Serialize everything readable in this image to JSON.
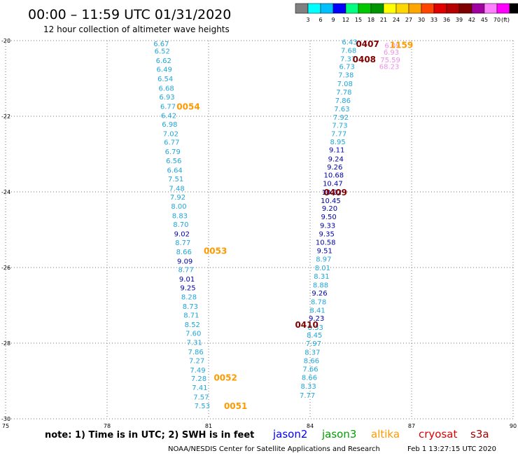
{
  "chart_data": {
    "type": "scatter",
    "title": "00:00 – 11:59 UTC 01/31/2020",
    "subtitle": "12 hour collection of altimeter wave heights",
    "xlim": [
      75,
      90
    ],
    "ylim": [
      -30,
      -20
    ],
    "x_ticks": [
      "75",
      "78",
      "81",
      "84",
      "87",
      "90"
    ],
    "y_ticks": [
      "-20",
      "-22",
      "-24",
      "-26",
      "-28",
      "-30"
    ],
    "grid": true,
    "color_scale": {
      "ticks": [
        "3",
        "6",
        "9",
        "12",
        "15",
        "18",
        "21",
        "24",
        "27",
        "30",
        "33",
        "36",
        "39",
        "42",
        "45",
        "70"
      ],
      "unit": "(ft)",
      "colors": [
        "#808080",
        "#00ffff",
        "#00bfff",
        "#0000ff",
        "#00ff7f",
        "#00c800",
        "#009600",
        "#ffff00",
        "#ffd700",
        "#ffa500",
        "#ff4500",
        "#e00000",
        "#b40000",
        "#800000",
        "#a000a0",
        "#ff80ff",
        "#ff00ff",
        "#000000"
      ]
    },
    "series": [
      {
        "name": "jason3",
        "points": [
          {
            "x": 79.6,
            "y": -20.07,
            "v": "6.67",
            "c": "#20a6d8"
          },
          {
            "x": 79.63,
            "y": -20.27,
            "v": "6.52",
            "c": "#20a6d8"
          },
          {
            "x": 79.67,
            "y": -20.52,
            "v": "6.62",
            "c": "#20a6d8"
          },
          {
            "x": 79.69,
            "y": -20.75,
            "v": "6.49",
            "c": "#20a6d8"
          },
          {
            "x": 79.72,
            "y": -21.0,
            "v": "6.54",
            "c": "#20a6d8"
          },
          {
            "x": 79.75,
            "y": -21.25,
            "v": "6.68",
            "c": "#20a6d8"
          },
          {
            "x": 79.77,
            "y": -21.48,
            "v": "6.93",
            "c": "#20a6d8"
          },
          {
            "x": 79.8,
            "y": -21.73,
            "v": "6.77",
            "c": "#20a6d8"
          },
          {
            "x": 79.82,
            "y": -21.97,
            "v": "6.42",
            "c": "#20a6d8"
          },
          {
            "x": 79.85,
            "y": -22.2,
            "v": "6.98",
            "c": "#20a6d8"
          },
          {
            "x": 79.88,
            "y": -22.45,
            "v": "7.02",
            "c": "#20a6d8"
          },
          {
            "x": 79.91,
            "y": -22.68,
            "v": "6.77",
            "c": "#20a6d8"
          },
          {
            "x": 79.94,
            "y": -22.93,
            "v": "6.79",
            "c": "#20a6d8"
          },
          {
            "x": 79.97,
            "y": -23.17,
            "v": "6.56",
            "c": "#20a6d8"
          },
          {
            "x": 80.0,
            "y": -23.42,
            "v": "6.64",
            "c": "#20a6d8"
          },
          {
            "x": 80.03,
            "y": -23.65,
            "v": "7.51",
            "c": "#20a6d8"
          },
          {
            "x": 80.06,
            "y": -23.9,
            "v": "7.48",
            "c": "#20a6d8"
          },
          {
            "x": 80.09,
            "y": -24.13,
            "v": "7.92",
            "c": "#20a6d8"
          },
          {
            "x": 80.12,
            "y": -24.37,
            "v": "8.00",
            "c": "#20a6d8"
          },
          {
            "x": 80.15,
            "y": -24.62,
            "v": "8.83",
            "c": "#20a6d8"
          },
          {
            "x": 80.18,
            "y": -24.85,
            "v": "8.70",
            "c": "#20a6d8"
          },
          {
            "x": 80.21,
            "y": -25.1,
            "v": "9.02",
            "c": "#0000a8"
          },
          {
            "x": 80.24,
            "y": -25.33,
            "v": "8.77",
            "c": "#20a6d8"
          },
          {
            "x": 80.27,
            "y": -25.57,
            "v": "8.66",
            "c": "#20a6d8"
          },
          {
            "x": 80.3,
            "y": -25.82,
            "v": "9.09",
            "c": "#0000a8"
          },
          {
            "x": 80.33,
            "y": -26.05,
            "v": "8.77",
            "c": "#20a6d8"
          },
          {
            "x": 80.36,
            "y": -26.3,
            "v": "9.01",
            "c": "#0000a8"
          },
          {
            "x": 80.39,
            "y": -26.53,
            "v": "9.25",
            "c": "#0000a8"
          },
          {
            "x": 80.42,
            "y": -26.77,
            "v": "8.28",
            "c": "#20a6d8"
          },
          {
            "x": 80.46,
            "y": -27.02,
            "v": "8.73",
            "c": "#20a6d8"
          },
          {
            "x": 80.49,
            "y": -27.25,
            "v": "8.71",
            "c": "#20a6d8"
          },
          {
            "x": 80.52,
            "y": -27.5,
            "v": "8.52",
            "c": "#20a6d8"
          },
          {
            "x": 80.55,
            "y": -27.73,
            "v": "7.60",
            "c": "#20a6d8"
          },
          {
            "x": 80.58,
            "y": -27.97,
            "v": "7.31",
            "c": "#20a6d8"
          },
          {
            "x": 80.62,
            "y": -28.22,
            "v": "7.86",
            "c": "#20a6d8"
          },
          {
            "x": 80.65,
            "y": -28.45,
            "v": "7.27",
            "c": "#20a6d8"
          },
          {
            "x": 80.68,
            "y": -28.7,
            "v": "7.49",
            "c": "#20a6d8"
          },
          {
            "x": 80.71,
            "y": -28.93,
            "v": "7.28",
            "c": "#20a6d8"
          },
          {
            "x": 80.74,
            "y": -29.17,
            "v": "7.41",
            "c": "#20a6d8"
          },
          {
            "x": 80.78,
            "y": -29.42,
            "v": "7.57",
            "c": "#20a6d8"
          },
          {
            "x": 80.81,
            "y": -29.65,
            "v": "7.53",
            "c": "#20a6d8"
          },
          {
            "x": 85.17,
            "y": -20.03,
            "v": "6.43",
            "c": "#20a6d8"
          },
          {
            "x": 85.14,
            "y": -20.25,
            "v": "7.68",
            "c": "#20a6d8"
          },
          {
            "x": 85.12,
            "y": -20.47,
            "v": "7.37",
            "c": "#20a6d8"
          },
          {
            "x": 85.09,
            "y": -20.68,
            "v": "6.73",
            "c": "#20a6d8"
          },
          {
            "x": 85.06,
            "y": -20.9,
            "v": "7.38",
            "c": "#20a6d8"
          },
          {
            "x": 85.03,
            "y": -21.13,
            "v": "7.08",
            "c": "#20a6d8"
          },
          {
            "x": 85.0,
            "y": -21.35,
            "v": "7.78",
            "c": "#20a6d8"
          },
          {
            "x": 84.97,
            "y": -21.57,
            "v": "7.86",
            "c": "#20a6d8"
          },
          {
            "x": 84.94,
            "y": -21.8,
            "v": "7.63",
            "c": "#20a6d8"
          },
          {
            "x": 84.91,
            "y": -22.02,
            "v": "7.92",
            "c": "#20a6d8"
          },
          {
            "x": 84.88,
            "y": -22.23,
            "v": "7.73",
            "c": "#20a6d8"
          },
          {
            "x": 84.85,
            "y": -22.45,
            "v": "7.77",
            "c": "#20a6d8"
          },
          {
            "x": 84.82,
            "y": -22.67,
            "v": "8.95",
            "c": "#20a6d8"
          },
          {
            "x": 84.79,
            "y": -22.88,
            "v": "9.11",
            "c": "#0000a8"
          },
          {
            "x": 84.76,
            "y": -23.12,
            "v": "9.24",
            "c": "#0000a8"
          },
          {
            "x": 84.73,
            "y": -23.33,
            "v": "9.26",
            "c": "#0000a8"
          },
          {
            "x": 84.7,
            "y": -23.55,
            "v": "10.68",
            "c": "#0000a8"
          },
          {
            "x": 84.67,
            "y": -23.77,
            "v": "10.47",
            "c": "#0000a8"
          },
          {
            "x": 84.64,
            "y": -24.0,
            "v": "10.32",
            "c": "#0000a8"
          },
          {
            "x": 84.61,
            "y": -24.22,
            "v": "10.45",
            "c": "#0000a8"
          },
          {
            "x": 84.58,
            "y": -24.43,
            "v": "9.20",
            "c": "#0000a8"
          },
          {
            "x": 84.55,
            "y": -24.65,
            "v": "9.50",
            "c": "#0000a8"
          },
          {
            "x": 84.52,
            "y": -24.88,
            "v": "9.33",
            "c": "#0000a8"
          },
          {
            "x": 84.49,
            "y": -25.1,
            "v": "9.35",
            "c": "#0000a8"
          },
          {
            "x": 84.46,
            "y": -25.32,
            "v": "10.58",
            "c": "#0000a8"
          },
          {
            "x": 84.43,
            "y": -25.55,
            "v": "9.51",
            "c": "#0000a8"
          },
          {
            "x": 84.4,
            "y": -25.77,
            "v": "8.97",
            "c": "#20a6d8"
          },
          {
            "x": 84.37,
            "y": -26.0,
            "v": "8.01",
            "c": "#20a6d8"
          },
          {
            "x": 84.34,
            "y": -26.22,
            "v": "8.31",
            "c": "#20a6d8"
          },
          {
            "x": 84.31,
            "y": -26.45,
            "v": "8.88",
            "c": "#20a6d8"
          },
          {
            "x": 84.28,
            "y": -26.67,
            "v": "9.26",
            "c": "#0000a8"
          },
          {
            "x": 84.25,
            "y": -26.9,
            "v": "8.78",
            "c": "#20a6d8"
          },
          {
            "x": 84.22,
            "y": -27.12,
            "v": "8.41",
            "c": "#20a6d8"
          },
          {
            "x": 84.19,
            "y": -27.33,
            "v": "9.23",
            "c": "#0000a8"
          },
          {
            "x": 84.16,
            "y": -27.57,
            "v": "8.33",
            "c": "#20a6d8"
          },
          {
            "x": 84.13,
            "y": -27.78,
            "v": "8.45",
            "c": "#20a6d8"
          },
          {
            "x": 84.1,
            "y": -28.0,
            "v": "7.97",
            "c": "#20a6d8"
          },
          {
            "x": 84.07,
            "y": -28.23,
            "v": "8.37",
            "c": "#20a6d8"
          },
          {
            "x": 84.04,
            "y": -28.45,
            "v": "8.66",
            "c": "#20a6d8"
          },
          {
            "x": 84.01,
            "y": -28.68,
            "v": "7.66",
            "c": "#20a6d8"
          },
          {
            "x": 83.98,
            "y": -28.9,
            "v": "8.66",
            "c": "#20a6d8"
          },
          {
            "x": 83.95,
            "y": -29.13,
            "v": "8.33",
            "c": "#20a6d8"
          },
          {
            "x": 83.92,
            "y": -29.37,
            "v": "7.77",
            "c": "#20a6d8"
          }
        ]
      },
      {
        "name": "s3a",
        "points": [
          {
            "x": 86.43,
            "y": -20.12,
            "v": "6.09",
            "c": "#ee8ee8"
          },
          {
            "x": 86.4,
            "y": -20.3,
            "v": "6.93",
            "c": "#ee8ee8"
          },
          {
            "x": 86.37,
            "y": -20.5,
            "v": "75.59",
            "c": "#ee8ee8"
          },
          {
            "x": 86.34,
            "y": -20.68,
            "v": "68.23",
            "c": "#ee8ee8"
          }
        ]
      }
    ],
    "time_labels": [
      {
        "x": 80.4,
        "y": -21.73,
        "text": "0054",
        "color": "#ff9900"
      },
      {
        "x": 81.2,
        "y": -25.55,
        "text": "0053",
        "color": "#ff9900"
      },
      {
        "x": 81.5,
        "y": -28.9,
        "text": "0052",
        "color": "#ff9900"
      },
      {
        "x": 81.8,
        "y": -29.65,
        "text": "0051",
        "color": "#ff9900"
      },
      {
        "x": 86.7,
        "y": -20.1,
        "text": "1159",
        "color": "#ff9900"
      },
      {
        "x": 85.7,
        "y": -20.07,
        "text": "0407",
        "color": "#800000"
      },
      {
        "x": 85.6,
        "y": -20.48,
        "text": "0408",
        "color": "#800000"
      },
      {
        "x": 84.75,
        "y": -24.0,
        "text": "0409",
        "color": "#800000"
      },
      {
        "x": 83.9,
        "y": -27.5,
        "text": "0410",
        "color": "#800000"
      }
    ]
  },
  "footer": {
    "note": "note:  1) Time is in UTC;  2) SWH is in feet",
    "missions": [
      {
        "label": "jason2",
        "color": "#0000ff"
      },
      {
        "label": "jason3",
        "color": "#00a000"
      },
      {
        "label": "altika",
        "color": "#ff9900"
      },
      {
        "label": "cryosat",
        "color": "#e00000"
      },
      {
        "label": "s3a",
        "color": "#a00000"
      }
    ],
    "credit": "NOAA/NESDIS Center for Satellite Applications and Research",
    "timestamp": "Feb  1 13:27:15 UTC 2020"
  }
}
